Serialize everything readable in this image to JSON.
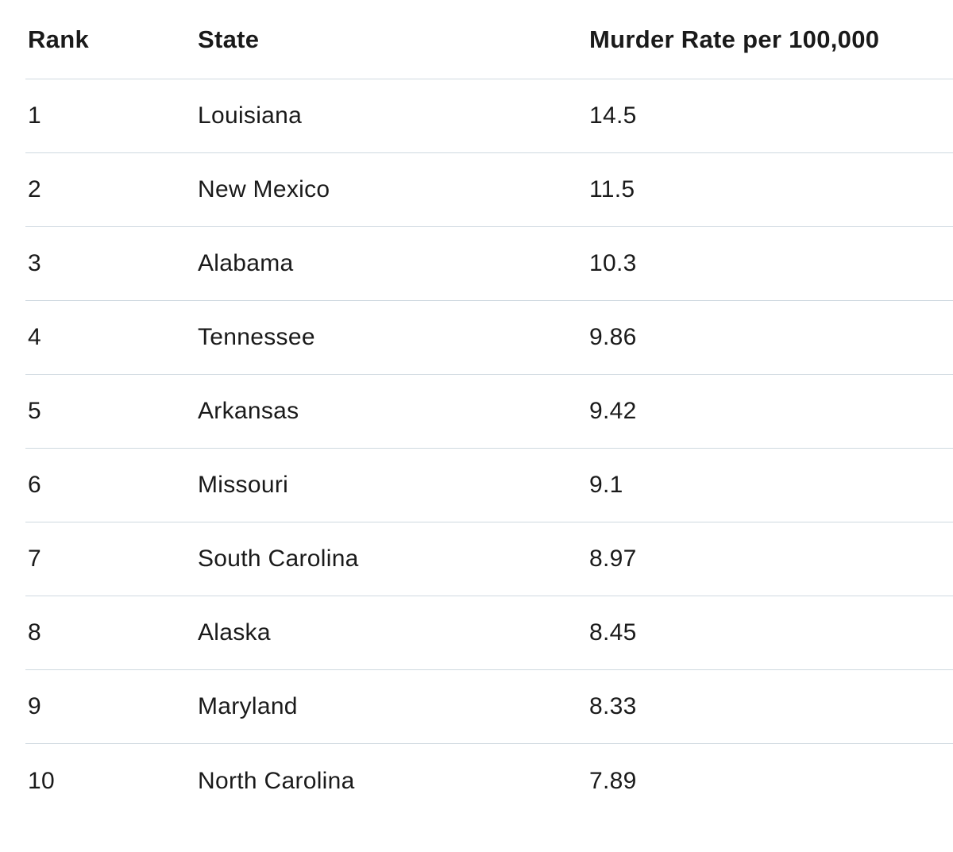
{
  "table": {
    "headers": [
      "Rank",
      "State",
      "Murder Rate per 100,000"
    ],
    "rows": [
      [
        "1",
        "Louisiana",
        "14.5"
      ],
      [
        "2",
        "New Mexico",
        "11.5"
      ],
      [
        "3",
        "Alabama",
        "10.3"
      ],
      [
        "4",
        "Tennessee",
        "9.86"
      ],
      [
        "5",
        "Arkansas",
        "9.42"
      ],
      [
        "6",
        "Missouri",
        "9.1"
      ],
      [
        "7",
        "South Carolina",
        "8.97"
      ],
      [
        "8",
        "Alaska",
        "8.45"
      ],
      [
        "9",
        "Maryland",
        "8.33"
      ],
      [
        "10",
        "North Carolina",
        "7.89"
      ]
    ]
  },
  "colors": {
    "text": "#1a1a1a",
    "divider": "#cfd9e0",
    "background": "#ffffff"
  }
}
